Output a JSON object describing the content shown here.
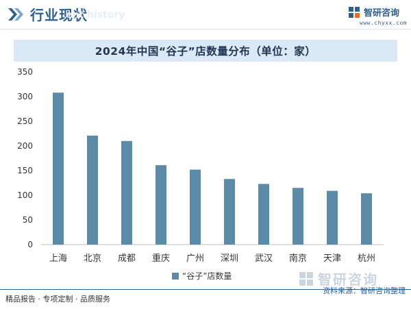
{
  "header": {
    "section_title": "行业现状",
    "ghost_text": "ent history",
    "logo_name": "智研咨询",
    "logo_url": "www.chyxx.com"
  },
  "watermark": {
    "name": "智研咨询"
  },
  "chart_data": {
    "type": "bar",
    "title": "2024年中国“谷子”店数量分布（单位：家）",
    "categories": [
      "上海",
      "北京",
      "成都",
      "重庆",
      "广州",
      "深圳",
      "武汉",
      "南京",
      "天津",
      "杭州"
    ],
    "series": [
      {
        "name": "“谷子”店数量",
        "values": [
          308,
          221,
          210,
          161,
          152,
          133,
          123,
          115,
          109,
          104
        ],
        "color": "#5b8ba6"
      }
    ],
    "ylim": [
      0,
      350
    ],
    "yticks": [
      0,
      50,
      100,
      150,
      200,
      250,
      300,
      350
    ],
    "legend_position": "bottom",
    "grid": false
  },
  "footer": {
    "left": "精品报告 · 专项定制 · 品质服务",
    "right": "资料来源：智研咨询整理"
  },
  "colors": {
    "accent": "#2f5f8c",
    "bar": "#5b8ba6",
    "title_band": "#dbe9f7"
  }
}
